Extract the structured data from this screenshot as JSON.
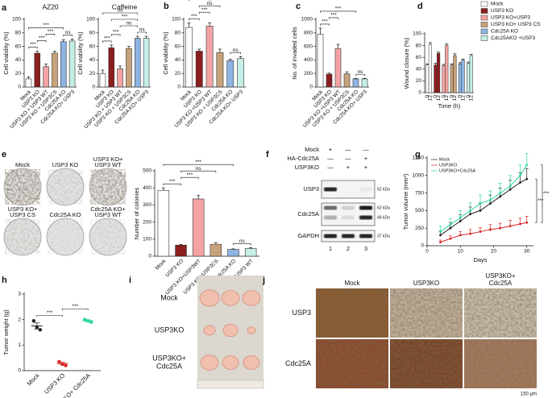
{
  "chart_data": [
    {
      "type": "bar",
      "panel": "a",
      "title": "AZ20",
      "ylabel": "Cell viability (%)",
      "categories": [
        "Mock",
        "USP3 KO",
        "USP3 KO + USP3 WT",
        "USP3 KO + USP3CS",
        "Cdc25A KO",
        "Cdc25A KO+ USP3"
      ],
      "values": [
        12,
        50,
        30,
        50,
        67,
        68
      ],
      "errors": [
        3,
        3,
        4,
        3,
        3,
        3
      ],
      "colors": [
        "#ffffff",
        "#8b1e1e",
        "#f4a3a3",
        "#c8a27a",
        "#8db4e2",
        "#c5efe6"
      ],
      "ylim": [
        0,
        100
      ],
      "yticks": [
        0,
        20,
        40,
        60,
        80,
        100
      ],
      "brackets": [
        {
          "label": "***",
          "pair": [
            0,
            1
          ]
        },
        {
          "label": "***",
          "pair": [
            1,
            2
          ]
        },
        {
          "label": "***",
          "pair": [
            2,
            3
          ]
        },
        {
          "label": "ns",
          "pair": [
            4,
            5
          ]
        },
        {
          "label": "***",
          "pair": [
            0,
            4
          ]
        }
      ]
    },
    {
      "type": "bar",
      "title": "Caffeine",
      "ylabel": "Cell viability (%)",
      "categories": [
        "Mock",
        "USP3 KO",
        "USP3 KO + USP3 WT",
        "USP3 KO + USP3CS",
        "Cdc25A KO",
        "Cdc25A KO+ USP3"
      ],
      "values": [
        20,
        58,
        27,
        57,
        72,
        72
      ],
      "errors": [
        5,
        4,
        4,
        3,
        3,
        3
      ],
      "colors": [
        "#ffffff",
        "#8b1e1e",
        "#f4a3a3",
        "#c8a27a",
        "#8db4e2",
        "#c5efe6"
      ],
      "ylim": [
        0,
        100
      ],
      "yticks": [
        0,
        20,
        40,
        60,
        80,
        100
      ],
      "brackets": [
        {
          "label": "***",
          "pair": [
            0,
            1
          ]
        },
        {
          "label": "***",
          "pair": [
            1,
            2
          ]
        },
        {
          "label": "ns",
          "pair": [
            4,
            5
          ]
        },
        {
          "label": "ns",
          "pair": [
            2,
            4
          ]
        },
        {
          "label": "***",
          "pair": [
            1,
            4
          ]
        },
        {
          "label": "ns",
          "pair": [
            0,
            4
          ]
        }
      ]
    },
    {
      "type": "bar",
      "panel": "b",
      "ylabel": "Cell viability (%)",
      "categories": [
        "Mock",
        "USP3 KO",
        "USP3 KO +USP3 WT",
        "USP3 KO + USP3CS",
        "Cdc25A KO",
        "Cdc25A KO+ USP3"
      ],
      "values": [
        88,
        53,
        90,
        51,
        39,
        42
      ],
      "errors": [
        7,
        3,
        5,
        5,
        2,
        3
      ],
      "colors": [
        "#ffffff",
        "#8b1e1e",
        "#f4a3a3",
        "#c8a27a",
        "#8db4e2",
        "#c5efe6"
      ],
      "ylim": [
        0,
        100
      ],
      "yticks": [
        0,
        20,
        40,
        60,
        80,
        100
      ],
      "brackets": [
        {
          "label": "***",
          "pair": [
            0,
            1
          ]
        },
        {
          "label": "***",
          "pair": [
            1,
            2
          ]
        },
        {
          "label": "ns",
          "pair": [
            1,
            3
          ]
        },
        {
          "label": "ns",
          "pair": [
            4,
            5
          ]
        },
        {
          "label": "ns",
          "pair": [
            0,
            2
          ]
        },
        {
          "label": "***",
          "pair": [
            0,
            4
          ]
        }
      ]
    },
    {
      "type": "bar",
      "panel": "c",
      "ylabel": "No. of invaded cells",
      "categories": [
        "Mock",
        "USP3 KO",
        "USP3 KO +USP3 WT",
        "USP3 KO + USP3CS",
        "Cdc25A KO",
        "Cdc25A KO+ USP3"
      ],
      "values": [
        780,
        190,
        570,
        195,
        120,
        120
      ],
      "errors": [
        90,
        15,
        60,
        30,
        8,
        8
      ],
      "colors": [
        "#ffffff",
        "#8b1e1e",
        "#f4a3a3",
        "#c8a27a",
        "#8db4e2",
        "#c5efe6"
      ],
      "ylim": [
        0,
        1000
      ],
      "yticks": [
        0,
        200,
        400,
        600,
        800,
        1000
      ],
      "brackets": [
        {
          "label": "***",
          "pair": [
            0,
            1
          ]
        },
        {
          "label": "***",
          "pair": [
            1,
            2
          ]
        },
        {
          "label": "ns",
          "pair": [
            4,
            5
          ]
        },
        {
          "label": "***",
          "pair": [
            0,
            4
          ]
        }
      ]
    },
    {
      "type": "grouped_bar",
      "panel": "d",
      "ylabel": "Wound closure (%)",
      "xlabel": "Time (h)",
      "categories": [
        "0",
        "12"
      ],
      "series": [
        {
          "name": "Mock",
          "color": "#ffffff",
          "values": [
            47,
            82
          ],
          "errors": [
            2,
            3
          ]
        },
        {
          "name": "USP3 KO",
          "color": "#8b1e1e",
          "values": [
            47,
            67
          ],
          "errors": [
            3,
            2
          ]
        },
        {
          "name": "USP3 KO+USP3",
          "color": "#f4a3a3",
          "values": [
            46,
            80
          ],
          "errors": [
            2,
            3
          ]
        },
        {
          "name": "USP3 KO+ USP3 CS",
          "color": "#c8a27a",
          "values": [
            47,
            63
          ],
          "errors": [
            2,
            3
          ]
        },
        {
          "name": "Cdc25A KO",
          "color": "#8db4e2",
          "values": [
            49,
            55
          ],
          "errors": [
            2,
            2
          ]
        },
        {
          "name": "Cdc25AKO +USP3",
          "color": "#c5efe6",
          "values": [
            50,
            63
          ],
          "errors": [
            2,
            2
          ]
        }
      ],
      "ylim": [
        0,
        100
      ],
      "yticks": [
        0,
        20,
        40,
        60,
        80,
        100
      ]
    },
    {
      "type": "bar",
      "panel": "e",
      "ylabel": "Number of colonies",
      "categories": [
        "Mock",
        "USP3 KO",
        "USP3 KO+USP3WT",
        "USP3 KO+USP3CS",
        "Cdc25A KO",
        "Cdc25A KO+USP3 WT"
      ],
      "values": [
        385,
        65,
        335,
        70,
        40,
        45
      ],
      "errors": [
        15,
        4,
        20,
        10,
        3,
        5
      ],
      "colors": [
        "#ffffff",
        "#8b1e1e",
        "#f4a3a3",
        "#c8a27a",
        "#8db4e2",
        "#c5efe6"
      ],
      "ylim": [
        0,
        500
      ],
      "yticks": [
        0,
        100,
        200,
        300,
        400,
        500
      ],
      "brackets": [
        {
          "label": "***",
          "pair": [
            0,
            1
          ]
        },
        {
          "label": "***",
          "pair": [
            1,
            2
          ]
        },
        {
          "label": "ns",
          "pair": [
            1,
            3
          ]
        },
        {
          "label": "ns",
          "pair": [
            4,
            5
          ]
        },
        {
          "label": "***",
          "pair": [
            0,
            4
          ]
        }
      ]
    },
    {
      "type": "line",
      "panel": "g",
      "ylabel": "Tumor volume (mm³)",
      "xlabel": "Days",
      "x": [
        4,
        7,
        10,
        13,
        16,
        19,
        22,
        25,
        28,
        30
      ],
      "series": [
        {
          "name": "Mock",
          "color": "#222222",
          "values": [
            150,
            250,
            350,
            450,
            500,
            600,
            700,
            800,
            900,
            950
          ],
          "errors": [
            60,
            80,
            90,
            100,
            110,
            120,
            120,
            130,
            140,
            150
          ]
        },
        {
          "name": "USP3KO",
          "color": "#d62728",
          "values": [
            50,
            100,
            150,
            170,
            200,
            230,
            250,
            280,
            310,
            330
          ],
          "errors": [
            30,
            40,
            50,
            60,
            60,
            70,
            70,
            80,
            80,
            90
          ]
        },
        {
          "name": "USP3KO+Cdc25A",
          "color": "#2bd4a4",
          "values": [
            200,
            300,
            400,
            500,
            600,
            650,
            750,
            850,
            1000,
            1150
          ],
          "errors": [
            80,
            90,
            100,
            110,
            120,
            130,
            140,
            150,
            150,
            160
          ]
        }
      ],
      "xlim": [
        0,
        32
      ],
      "xticks": [
        0,
        10,
        20,
        30
      ],
      "ylim": [
        0,
        1250
      ],
      "yticks": [
        0,
        250,
        500,
        750,
        1000,
        1250
      ],
      "brackets": [
        {
          "label": "***",
          "pair": [
            0,
            1
          ]
        },
        {
          "label": "***",
          "pair": [
            2,
            1
          ]
        }
      ]
    },
    {
      "type": "dot",
      "panel": "h",
      "ylabel": "Tumor weight (g)",
      "categories": [
        "Mock",
        "USP3 KO",
        "USP3KO+ Cdc25A"
      ],
      "points": [
        [
          1.95,
          1.7,
          1.6
        ],
        [
          0.35,
          0.25,
          0.2
        ],
        [
          2.0,
          1.95,
          1.9
        ]
      ],
      "means": [
        1.75,
        0.28,
        1.95
      ],
      "errors": [
        0.12,
        0.05,
        0.04
      ],
      "colors": [
        "#222222",
        "#d62728",
        "#2bd4a4"
      ],
      "ylim": [
        0,
        3
      ],
      "yticks": [
        0,
        1,
        2,
        3
      ],
      "brackets": [
        {
          "label": "***",
          "pair": [
            0,
            1
          ]
        },
        {
          "label": "***",
          "pair": [
            1,
            2
          ]
        }
      ]
    }
  ],
  "colony_images": {
    "labels": [
      [
        "Mock"
      ],
      [
        "USP3 KO"
      ],
      [
        "USP3 KO+",
        "USP3 WT"
      ],
      [
        "USP3 KO+",
        "USP3 CS"
      ],
      [
        "Cdc25A KO"
      ],
      [
        "Cdc25A KO+",
        "USP3 WT"
      ]
    ]
  },
  "blot": {
    "panel": "f",
    "conditions": [
      {
        "label": "Mock",
        "signs": [
          "+",
          "—",
          "—"
        ]
      },
      {
        "label": "HA-Cdc25A",
        "signs": [
          "—",
          "—",
          "+"
        ]
      },
      {
        "label": "USP3KO",
        "signs": [
          "—",
          "+",
          "+"
        ]
      }
    ],
    "bands": [
      {
        "label": "USP3",
        "markers": [
          "52 kDa"
        ]
      },
      {
        "label": "Cdc25A",
        "markers": [
          "62 kDa",
          "49 kDa"
        ]
      },
      {
        "label": "GAPDH",
        "markers": [
          "37 kDa"
        ]
      }
    ],
    "lanes": [
      "1",
      "2",
      "3"
    ]
  },
  "tumor_photo": {
    "panel": "i",
    "groups": [
      [
        "Mock"
      ],
      [
        "USP3KO"
      ],
      [
        "USP3KO+",
        "Cdc25A"
      ]
    ]
  },
  "ihc": {
    "panel": "j",
    "columns": [
      [
        "Mock"
      ],
      [
        "USP3KO"
      ],
      [
        "USP3KO+",
        "Cdc25A"
      ]
    ],
    "rows": [
      "USP3",
      "Cdc25A"
    ],
    "scale": "150 μm"
  }
}
